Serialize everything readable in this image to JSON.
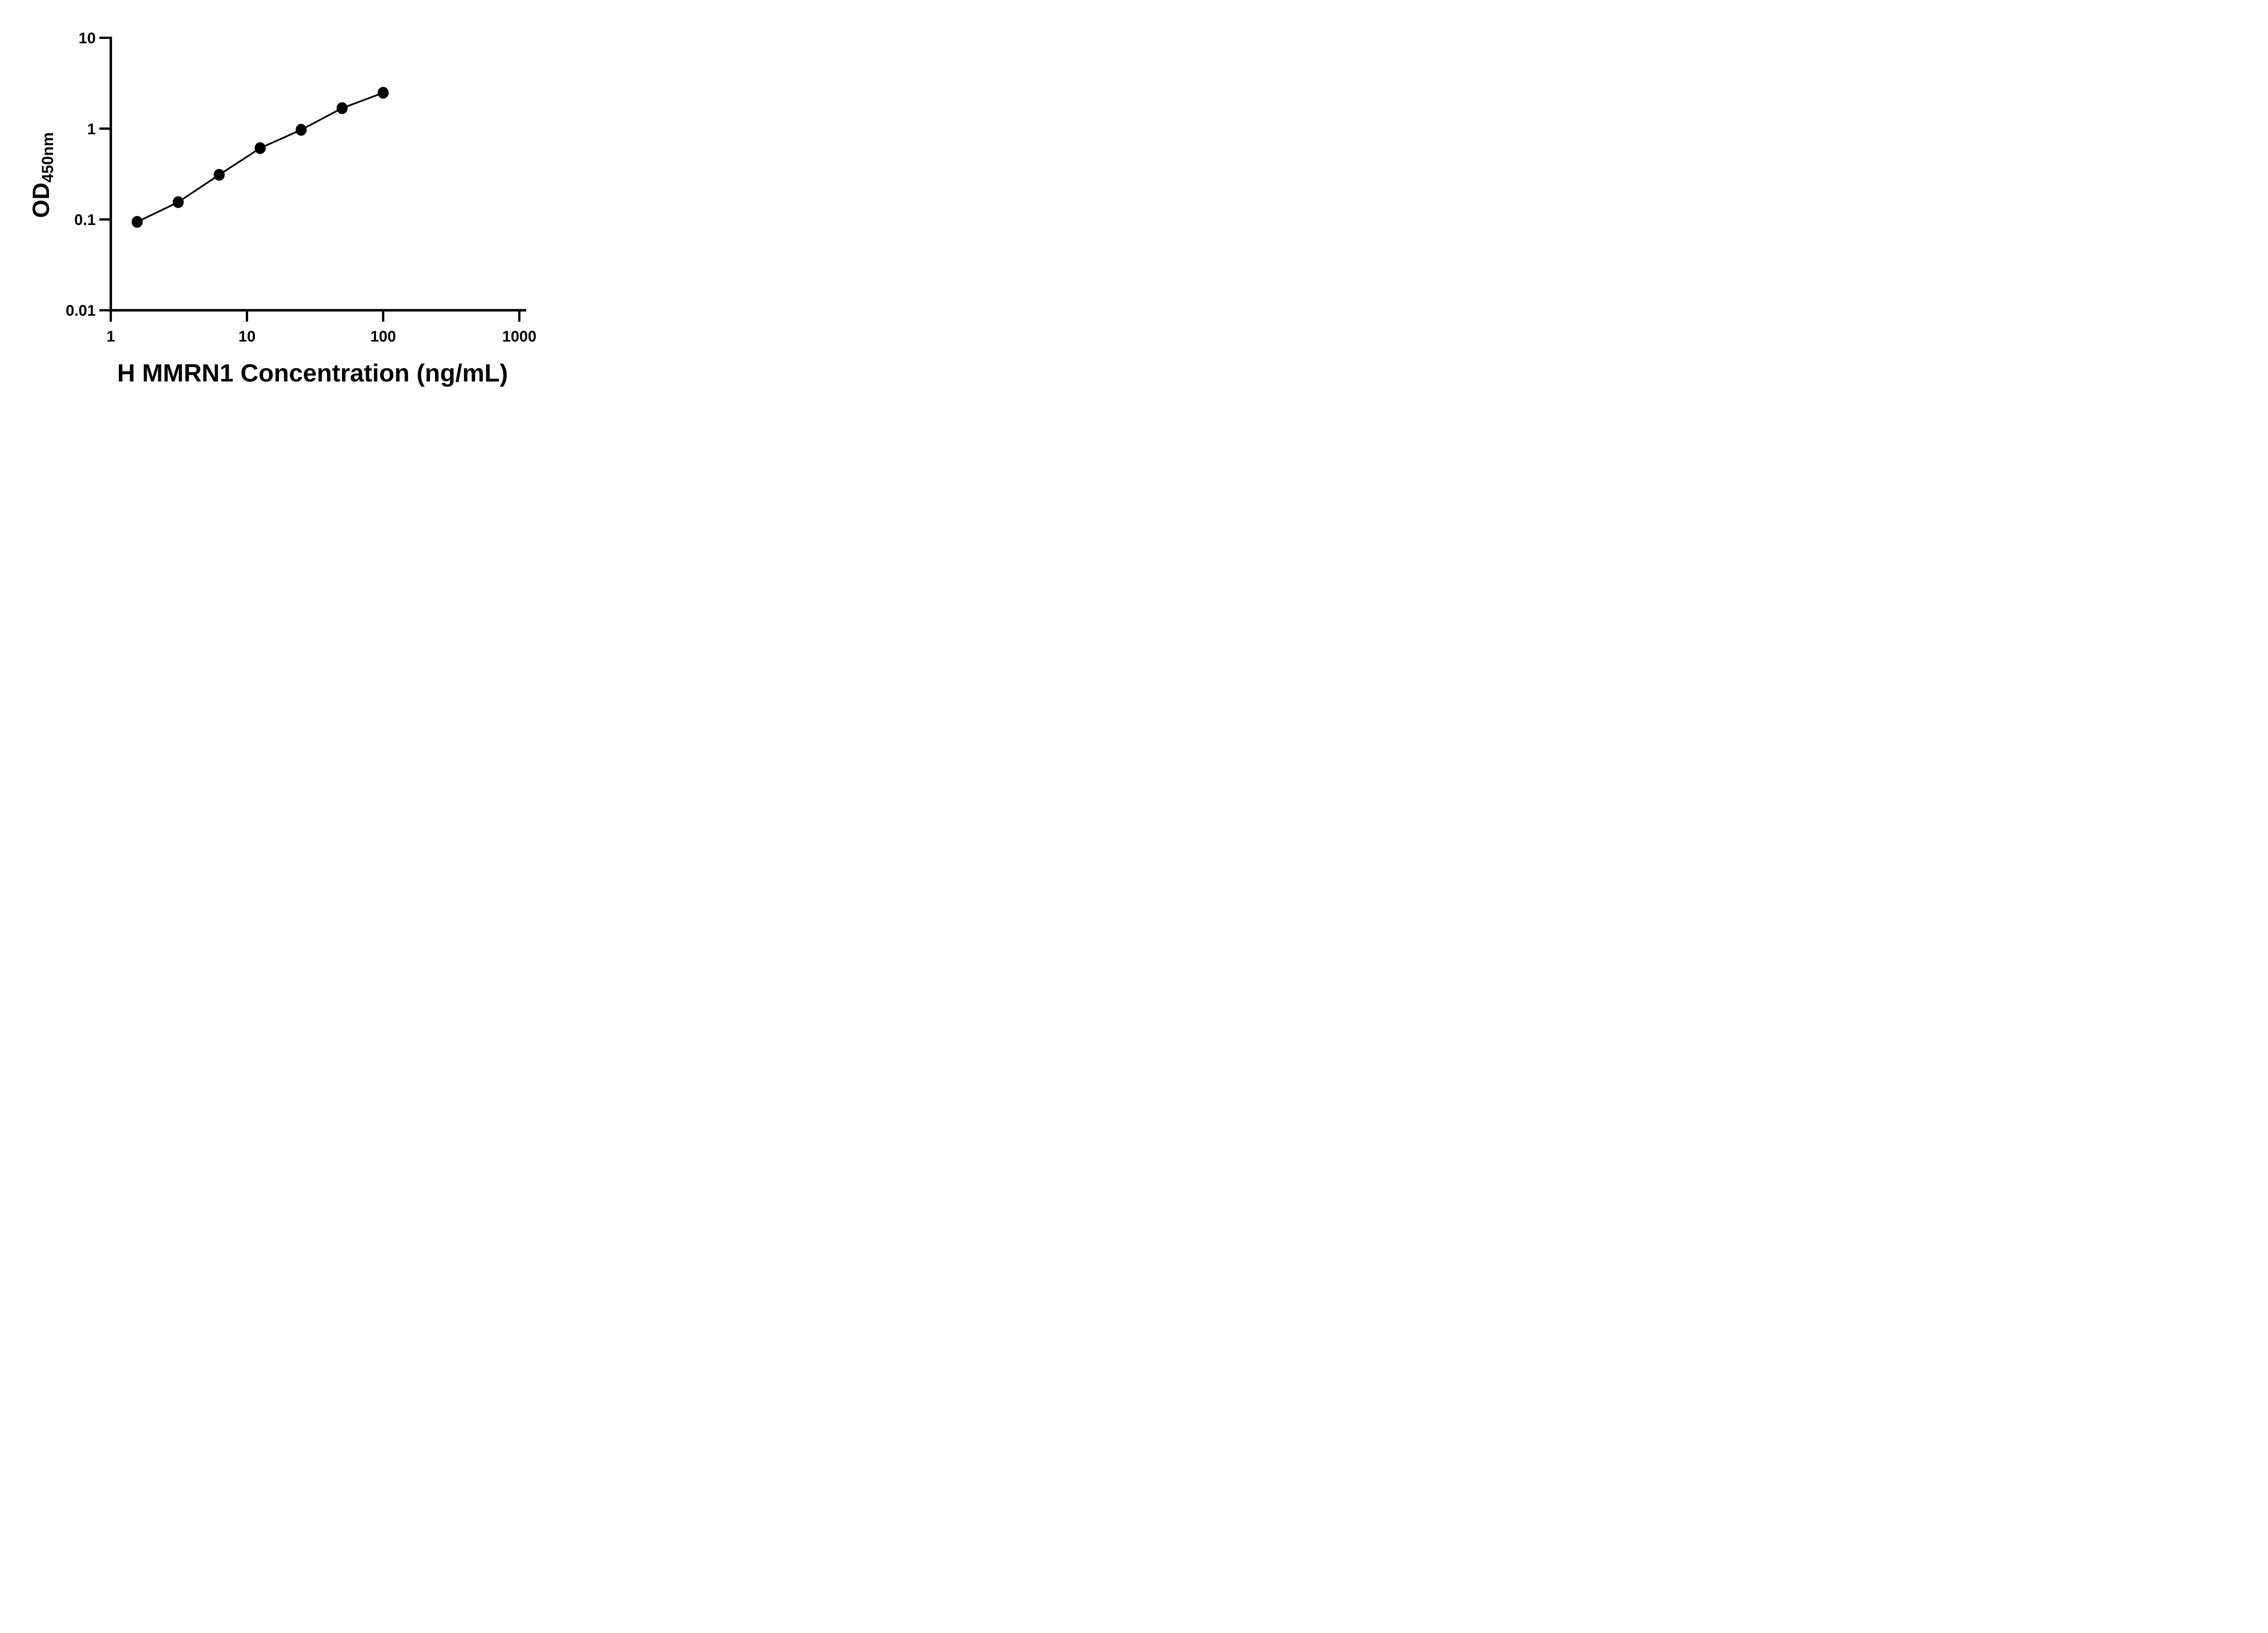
{
  "figure": {
    "background": "#ffffff",
    "ink": "#000000"
  },
  "chart_data": {
    "type": "line",
    "xlabel": "H MMRN1 Concentration (ng/mL)",
    "ylabel_main": "OD",
    "ylabel_sub": "450nm",
    "x_scale": "log",
    "y_scale": "log",
    "x_range": [
      1,
      1000
    ],
    "y_range": [
      0.01,
      10
    ],
    "x_ticks": [
      {
        "value": 1,
        "label": "1"
      },
      {
        "value": 10,
        "label": "10"
      },
      {
        "value": 100,
        "label": "100"
      },
      {
        "value": 1000,
        "label": "1000"
      }
    ],
    "y_ticks": [
      {
        "value": 10,
        "label": "10"
      },
      {
        "value": 1,
        "label": "1"
      },
      {
        "value": 0.1,
        "label": "0.1"
      },
      {
        "value": 0.01,
        "label": "0.01"
      }
    ],
    "grid": false,
    "legend": "none",
    "marker": "filled-circle",
    "line_color": "#000000",
    "marker_color": "#000000",
    "series": [
      {
        "points": [
          {
            "x": 1.5625,
            "y": 0.094
          },
          {
            "x": 3.125,
            "y": 0.155
          },
          {
            "x": 6.25,
            "y": 0.31
          },
          {
            "x": 12.5,
            "y": 0.61
          },
          {
            "x": 25,
            "y": 0.97
          },
          {
            "x": 50,
            "y": 1.68
          },
          {
            "x": 100,
            "y": 2.48
          }
        ]
      }
    ]
  }
}
